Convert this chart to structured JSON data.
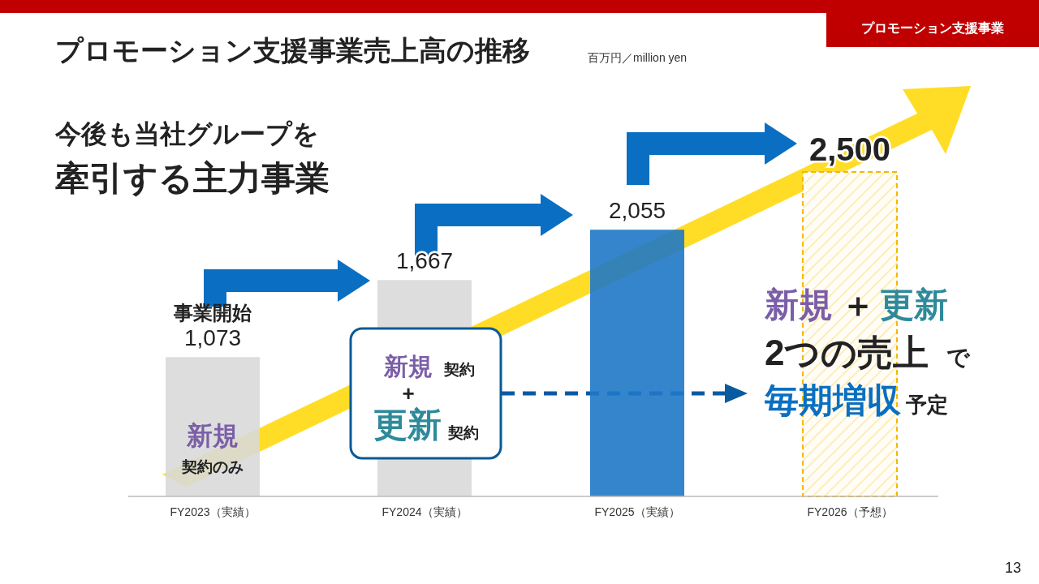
{
  "chart_data": {
    "type": "bar",
    "title": "プロモーション支援事業売上高の推移",
    "subtitle": "百万円／million yen",
    "categories": [
      "FY2023（実績）",
      "FY2024（実績）",
      "FY2025（実績）",
      "FY2026（予想）"
    ],
    "values": [
      1073,
      1667,
      2055,
      2500
    ],
    "colors": [
      "#d9d9d9",
      "#d9d9d9",
      "#1f78c8",
      "#f5b800"
    ],
    "value_labels": [
      "1,073",
      "1,667",
      "2,055",
      "2,500"
    ],
    "annotations": [
      "プロモーション支援事業",
      "今後も当社グループを",
      "牽引する主力事業",
      "事業開始",
      "新規",
      "契約のみ",
      "新規",
      "契約",
      "+",
      "更新",
      "契約",
      "新規",
      "＋",
      "更新",
      "2つの売上",
      "で",
      "毎期増収",
      "予定",
      "13"
    ]
  }
}
